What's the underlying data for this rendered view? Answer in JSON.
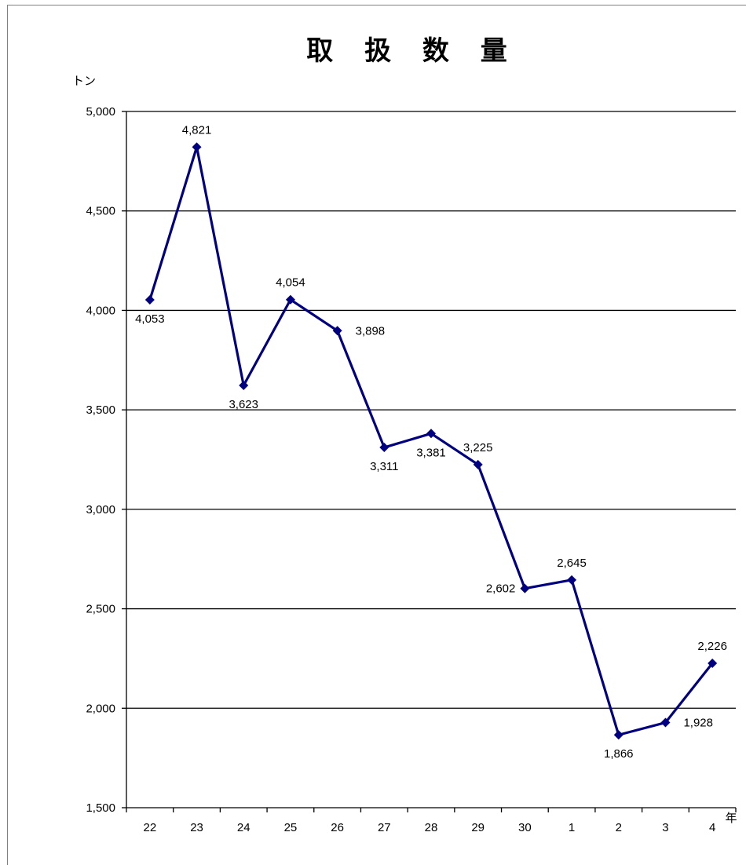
{
  "chart_data": {
    "type": "line",
    "title": "取 扱 数 量",
    "ylabel": "トン",
    "xlabel": "年",
    "ylim": [
      1500,
      5000
    ],
    "yticks": [
      "1,500",
      "2,000",
      "2,500",
      "3,000",
      "3,500",
      "4,000",
      "4,500",
      "5,000"
    ],
    "ytick_values": [
      1500,
      2000,
      2500,
      3000,
      3500,
      4000,
      4500,
      5000
    ],
    "categories": [
      "22",
      "23",
      "24",
      "25",
      "26",
      "27",
      "28",
      "29",
      "30",
      "1",
      "2",
      "3",
      "4"
    ],
    "series": [
      {
        "values": [
          4053,
          4821,
          3623,
          4054,
          3898,
          3311,
          3381,
          3225,
          2602,
          2645,
          1866,
          1928,
          2226
        ],
        "labels": [
          "4,053",
          "4,821",
          "3,623",
          "4,054",
          "3,898",
          "3,311",
          "3,381",
          "3,225",
          "2,602",
          "2,645",
          "1,866",
          "1,928",
          "2,226"
        ],
        "label_positions": [
          "below",
          "above",
          "below",
          "above",
          "right",
          "below",
          "below",
          "above",
          "left",
          "above",
          "below",
          "right",
          "above"
        ],
        "color": "#000080"
      }
    ],
    "grid": true,
    "gridline_color": "#000000"
  }
}
